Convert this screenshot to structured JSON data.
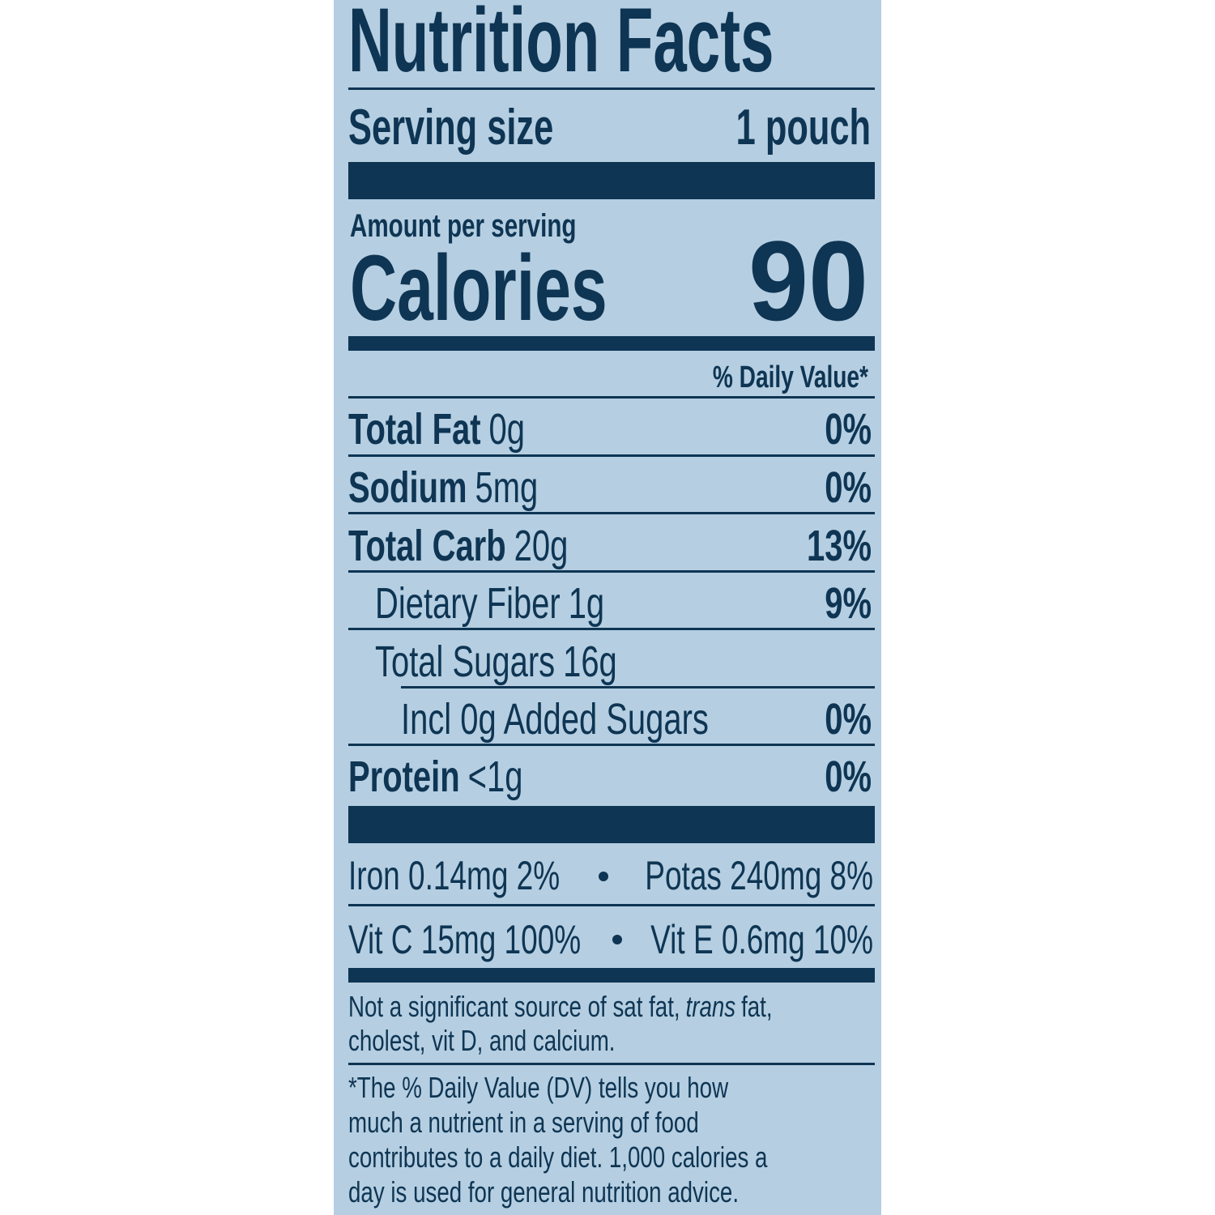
{
  "title": "Nutrition Facts",
  "serving": {
    "label": "Serving size",
    "value": "1 pouch"
  },
  "amount_per_serving": "Amount per serving",
  "calories": {
    "label": "Calories",
    "value": "90"
  },
  "dv_header": "% Daily Value*",
  "nutrients": [
    {
      "name": "Total Fat",
      "amount": "0g",
      "dv": "0%"
    },
    {
      "name": "Sodium",
      "amount": "5mg",
      "dv": "0%"
    },
    {
      "name": "Total Carb",
      "amount": "20g",
      "dv": "13%"
    },
    {
      "name": "Dietary Fiber",
      "amount": "1g",
      "dv": "9%"
    },
    {
      "name": "Total Sugars",
      "amount": "16g"
    },
    {
      "name": "Incl 0g Added Sugars",
      "dv": "0%"
    },
    {
      "name": "Protein",
      "amount": "<1g",
      "dv": "0%"
    }
  ],
  "vitamins": [
    [
      "Iron 0.14mg 2%",
      "Potas 240mg 8%"
    ],
    [
      "Vit C 15mg 100%",
      "Vit E 0.6mg 10%"
    ]
  ],
  "note": {
    "line1": [
      "Not a significant source of sat fat,",
      "trans",
      "fat,"
    ],
    "line2": "cholest, vit D, and calcium."
  },
  "dv_note": [
    "*The % Daily Value (DV) tells you how",
    "much a nutrient in a serving of food",
    "contributes to a daily diet. 1,000 calories a",
    "day is used for general nutrition advice."
  ]
}
